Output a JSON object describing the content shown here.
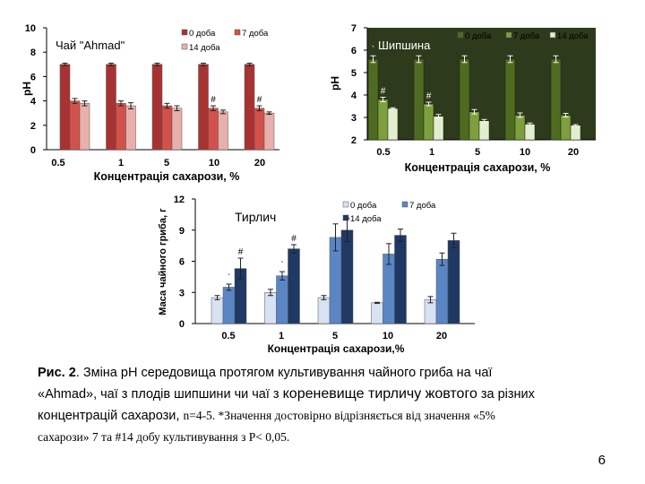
{
  "colors": {
    "c1": {
      "d0": "#a83232",
      "d7": "#d4514b",
      "d14": "#e8b0aa"
    },
    "c2": {
      "d0": "#4f6b22",
      "d7": "#7e9f3e",
      "d14": "#e4edcf"
    },
    "c3": {
      "d0": "#d7e2f3",
      "d7": "#5b86c5",
      "d14": "#1f3864"
    }
  },
  "chart_data": [
    {
      "type": "bar",
      "title": "Чай \"Ahmad\"",
      "ylabel": "pH",
      "xlabel": "Концентрація сахарози, %",
      "categories": [
        "0.5",
        "1",
        "5",
        "10",
        "20"
      ],
      "ylim": [
        0,
        10
      ],
      "yticks": [
        "0",
        "2",
        "4",
        "6",
        "8",
        "10"
      ],
      "series": [
        {
          "name": "0 доба",
          "values": [
            7.0,
            7.0,
            7.0,
            7.0,
            7.0
          ],
          "errors": [
            0.1,
            0.1,
            0.1,
            0.1,
            0.1
          ]
        },
        {
          "name": "7 доба",
          "values": [
            4.0,
            3.8,
            3.6,
            3.4,
            3.4
          ],
          "errors": [
            0.2,
            0.2,
            0.2,
            0.2,
            0.2
          ]
        },
        {
          "name": "14 доба",
          "values": [
            3.8,
            3.6,
            3.4,
            3.1,
            3.0
          ],
          "errors": [
            0.2,
            0.25,
            0.2,
            0.15,
            0.1
          ]
        }
      ],
      "marks": [
        {
          "cat": 3,
          "series": 1,
          "text": "#"
        },
        {
          "cat": 4,
          "series": 1,
          "text": "#"
        }
      ]
    },
    {
      "type": "bar",
      "title": "Шипшина",
      "ylabel": "pH",
      "xlabel": "Концентрація сахарози, %",
      "categories": [
        "0.5",
        "1",
        "5",
        "10",
        "20"
      ],
      "ylim": [
        2,
        7
      ],
      "yticks": [
        "2",
        "3",
        "4",
        "5",
        "6",
        "7"
      ],
      "series": [
        {
          "name": "0 доба",
          "values": [
            5.6,
            5.6,
            5.6,
            5.6,
            5.6
          ],
          "errors": [
            0.15,
            0.15,
            0.15,
            0.15,
            0.15
          ]
        },
        {
          "name": "7 доба",
          "values": [
            3.8,
            3.6,
            3.25,
            3.1,
            3.1
          ],
          "errors": [
            0.1,
            0.08,
            0.1,
            0.1,
            0.08
          ]
        },
        {
          "name": "14 доба",
          "values": [
            3.4,
            3.05,
            2.85,
            2.7,
            2.65
          ],
          "errors": [
            0.03,
            0.08,
            0.06,
            0.05,
            0.03
          ]
        }
      ],
      "marks": [
        {
          "cat": 0,
          "series": 0,
          "text": "`"
        },
        {
          "cat": 0,
          "series": 1,
          "text": "#"
        },
        {
          "cat": 1,
          "series": 0,
          "text": "`"
        },
        {
          "cat": 1,
          "series": 1,
          "text": "#"
        }
      ]
    },
    {
      "type": "bar",
      "title": "Тирлич",
      "ylabel": "Маса чайного гриба, г",
      "xlabel": "Концентрація сахарози,%",
      "categories": [
        "0.5",
        "1",
        "5",
        "10",
        "20"
      ],
      "ylim": [
        0,
        12
      ],
      "yticks": [
        "0",
        "3",
        "6",
        "9",
        "12"
      ],
      "series": [
        {
          "name": "0 доба",
          "values": [
            2.5,
            3.0,
            2.5,
            2.0,
            2.3
          ],
          "errors": [
            0.2,
            0.3,
            0.2,
            0.05,
            0.3
          ]
        },
        {
          "name": "7 доба",
          "values": [
            3.5,
            4.6,
            8.3,
            6.7,
            6.2
          ],
          "errors": [
            0.3,
            0.4,
            1.3,
            1.0,
            0.6
          ]
        },
        {
          "name": "14 доба",
          "values": [
            5.3,
            7.2,
            9.0,
            8.5,
            8.0
          ],
          "errors": [
            1.0,
            0.4,
            1.1,
            0.6,
            0.7
          ]
        }
      ],
      "marks": [
        {
          "cat": 0,
          "series": 1,
          "text": "`"
        },
        {
          "cat": 0,
          "series": 2,
          "text": "#"
        },
        {
          "cat": 1,
          "series": 1,
          "text": "`"
        },
        {
          "cat": 1,
          "series": 2,
          "text": "#"
        }
      ]
    }
  ],
  "caption": {
    "line1_prefix": "Рис. 2",
    "line1_rest": ". Зміна pH середовища   протягом культивування чайного гриба на чаї",
    "line2_a": "«Ahmad», чаї з плодів шипшини чи чаї з ",
    "line2_b": "кореневище тирличу жовтого",
    "line2_c": " за різних",
    "line3_a": "концентрацій сахарози, ",
    "line3_b": "n=4-5. *Значення достовірно відрізняється від значення «5%",
    "line4": "сахарози» 7  та #14 добу культивування з P< 0,05."
  },
  "page_number": "6"
}
